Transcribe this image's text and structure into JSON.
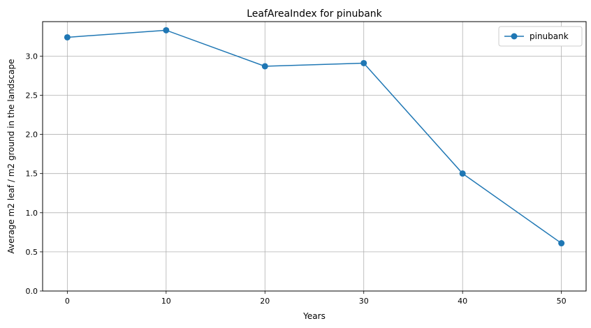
{
  "chart_data": {
    "type": "line",
    "title": "LeafAreaIndex for pinubank",
    "xlabel": "Years",
    "ylabel": "Average m2 leaf / m2 ground in the landscape",
    "x": [
      0,
      10,
      20,
      30,
      40,
      50
    ],
    "series": [
      {
        "name": "pinubank",
        "values": [
          3.24,
          3.33,
          2.87,
          2.91,
          1.5,
          0.61
        ],
        "color": "#1f77b4",
        "marker": "circle"
      }
    ],
    "xlim": [
      -2.5,
      52.5
    ],
    "ylim": [
      0,
      3.44
    ],
    "xticks": [
      0,
      10,
      20,
      30,
      40,
      50
    ],
    "xtick_labels": [
      "0",
      "10",
      "20",
      "30",
      "40",
      "50"
    ],
    "yticks": [
      0,
      0.5,
      1.0,
      1.5,
      2.0,
      2.5,
      3.0
    ],
    "ytick_labels": [
      "0.0",
      "0.5",
      "1.0",
      "1.5",
      "2.0",
      "2.5",
      "3.0"
    ],
    "grid": true,
    "legend_position": "top-right"
  }
}
